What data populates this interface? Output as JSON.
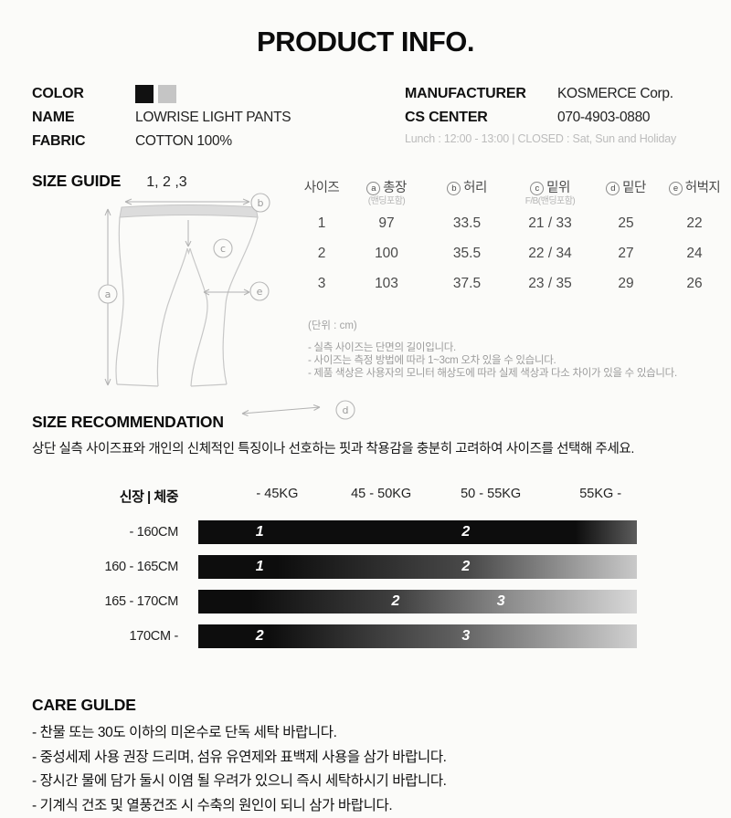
{
  "page": {
    "title": "PRODUCT INFO."
  },
  "info": {
    "color_label": "COLOR",
    "colors": [
      {
        "name": "black",
        "hex": "#111111"
      },
      {
        "name": "light-gray",
        "hex": "#c5c5c5"
      }
    ],
    "name_label": "NAME",
    "name_value": "LOWRISE LIGHT PANTS",
    "fabric_label": "FABRIC",
    "fabric_value": "COTTON 100%",
    "manufacturer_label": "MANUFACTURER",
    "manufacturer_value": "KOSMERCE Corp.",
    "cs_label": "CS CENTER",
    "cs_value": "070-4903-0880",
    "cs_note": "Lunch : 12:00 - 13:00  |  CLOSED : Sat, Sun and Holiday"
  },
  "size_guide": {
    "heading": "SIZE GUIDE",
    "sizes": "1, 2 ,3",
    "diagram": {
      "a": "a",
      "b": "b",
      "c": "c",
      "d": "d",
      "e": "e"
    },
    "table": {
      "headers": [
        {
          "letter": "",
          "label": "사이즈",
          "sub": ""
        },
        {
          "letter": "a",
          "label": "총장",
          "sub": "(밴딩포함)"
        },
        {
          "letter": "b",
          "label": "허리",
          "sub": ""
        },
        {
          "letter": "c",
          "label": "밑위",
          "sub": "F/B(밴딩포함)"
        },
        {
          "letter": "d",
          "label": "밑단",
          "sub": ""
        },
        {
          "letter": "e",
          "label": "허벅지",
          "sub": ""
        }
      ],
      "rows": [
        [
          "1",
          "97",
          "33.5",
          "21 / 33",
          "25",
          "22"
        ],
        [
          "2",
          "100",
          "35.5",
          "22 / 34",
          "27",
          "24"
        ],
        [
          "3",
          "103",
          "37.5",
          "23 / 35",
          "29",
          "26"
        ]
      ]
    },
    "unit_note": "(단위 : cm)",
    "notes": [
      "- 실측 사이즈는 단면의 길이입니다.",
      "- 사이즈는 측정 방법에 따라 1~3cm 오차 있을 수 있습니다.",
      "- 제품 색상은 사용자의 모니터 해상도에 따라 실제 색상과 다소 차이가 있을 수 있습니다."
    ]
  },
  "size_recommendation": {
    "heading": "SIZE RECOMMENDATION",
    "description": "상단 실측 사이즈표와 개인의 신체적인 특징이나 선호하는 핏과 착용감을 충분히 고려하여 사이즈를 선택해 주세요.",
    "corner_label": "신장 | 체중",
    "weight_columns": [
      "- 45KG",
      "45 - 50KG",
      "50 - 55KG",
      "55KG -"
    ],
    "weight_column_pos": [
      18,
      41.7,
      66.7,
      91.7
    ],
    "rows": [
      {
        "height": "- 160CM",
        "markers": [
          {
            "size": "1",
            "pos": 14
          },
          {
            "size": "2",
            "pos": 61
          }
        ],
        "gradient": [
          "#0d0d0d 0%",
          "#0d0d0d 86%",
          "#5c5c5c 100%"
        ]
      },
      {
        "height": "160 - 165CM",
        "markers": [
          {
            "size": "1",
            "pos": 14
          },
          {
            "size": "2",
            "pos": 61
          }
        ],
        "gradient": [
          "#0d0d0d 0%",
          "#0d0d0d 18%",
          "#4a4a4a 62%",
          "#c9c9c9 100%"
        ]
      },
      {
        "height": "165 - 170CM",
        "markers": [
          {
            "size": "2",
            "pos": 45
          },
          {
            "size": "3",
            "pos": 69
          }
        ],
        "gradient": [
          "#0d0d0d 0%",
          "#0d0d0d 12%",
          "#3f3f3f 45%",
          "#8a8a8a 70%",
          "#d8d8d8 100%"
        ]
      },
      {
        "height": "170CM -",
        "markers": [
          {
            "size": "2",
            "pos": 14
          },
          {
            "size": "3",
            "pos": 61
          }
        ],
        "gradient": [
          "#0d0d0d 0%",
          "#0d0d0d 16%",
          "#5e5e5e 58%",
          "#d0d0d0 100%"
        ]
      }
    ]
  },
  "care": {
    "heading": "CARE GULDE",
    "items": [
      "- 찬물 또는 30도 이하의 미온수로 단독 세탁 바랍니다.",
      "- 중성세제 사용 권장 드리며, 섬유 유연제와 표백제 사용을 삼가 바랍니다.",
      "- 장시간 물에 담가 둘시 이염 될 우려가 있으니 즉시 세탁하시기 바랍니다.",
      "- 기계식 건조 및 열풍건조 시 수축의 원인이 되니 삼가 바랍니다."
    ]
  }
}
